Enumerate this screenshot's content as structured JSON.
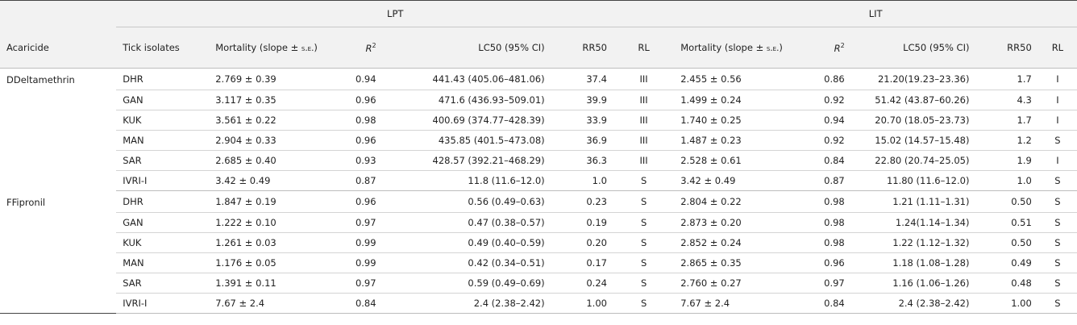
{
  "header": {
    "group_lpt": "LPT",
    "group_lit": "LIT",
    "acaricide": "Acaricide",
    "tick_isolates": "Tick isolates",
    "mortality_prefix": "Mortality (slope ± ",
    "mortality_se": "s.e.",
    "mortality_suffix": ")",
    "r2_base": "R",
    "r2_sup": "2",
    "lc50": "LC50 (95% CI)",
    "rr50": "RR50",
    "rl": "RL"
  },
  "groups": [
    {
      "acaricide": "DDeltamethrin",
      "rows": [
        {
          "isolate": "DHR",
          "lpt_mort": "2.769 ± 0.39",
          "lpt_r2": "0.94",
          "lpt_lc50": "441.43 (405.06–481.06)",
          "lpt_rr50": "37.4",
          "lpt_rl": "III",
          "lit_mort": "2.455 ± 0.56",
          "lit_r2": "0.86",
          "lit_lc50": "21.20(19.23–23.36)",
          "lit_rr50": "1.7",
          "lit_rl": "I"
        },
        {
          "isolate": "GAN",
          "lpt_mort": "3.117 ± 0.35",
          "lpt_r2": "0.96",
          "lpt_lc50": "471.6 (436.93–509.01)",
          "lpt_rr50": "39.9",
          "lpt_rl": "III",
          "lit_mort": "1.499 ± 0.24",
          "lit_r2": "0.92",
          "lit_lc50": "51.42 (43.87–60.26)",
          "lit_rr50": "4.3",
          "lit_rl": "I"
        },
        {
          "isolate": "KUK",
          "lpt_mort": "3.561 ± 0.22",
          "lpt_r2": "0.98",
          "lpt_lc50": "400.69 (374.77–428.39)",
          "lpt_rr50": "33.9",
          "lpt_rl": "III",
          "lit_mort": "1.740 ± 0.25",
          "lit_r2": "0.94",
          "lit_lc50": "20.70 (18.05–23.73)",
          "lit_rr50": "1.7",
          "lit_rl": "I"
        },
        {
          "isolate": "MAN",
          "lpt_mort": "2.904 ± 0.33",
          "lpt_r2": "0.96",
          "lpt_lc50": "435.85 (401.5–473.08)",
          "lpt_rr50": "36.9",
          "lpt_rl": "III",
          "lit_mort": "1.487 ± 0.23",
          "lit_r2": "0.92",
          "lit_lc50": "15.02 (14.57–15.48)",
          "lit_rr50": "1.2",
          "lit_rl": "S"
        },
        {
          "isolate": "SAR",
          "lpt_mort": "2.685 ± 0.40",
          "lpt_r2": "0.93",
          "lpt_lc50": "428.57 (392.21–468.29)",
          "lpt_rr50": "36.3",
          "lpt_rl": "III",
          "lit_mort": "2.528 ± 0.61",
          "lit_r2": "0.84",
          "lit_lc50": "22.80 (20.74–25.05)",
          "lit_rr50": "1.9",
          "lit_rl": "I"
        },
        {
          "isolate": "IVRI-I",
          "lpt_mort": "3.42 ± 0.49",
          "lpt_r2": "0.87",
          "lpt_lc50": "11.8 (11.6–12.0)",
          "lpt_rr50": "1.0",
          "lpt_rl": "S",
          "lit_mort": "3.42 ± 0.49",
          "lit_r2": "0.87",
          "lit_lc50": "11.80 (11.6–12.0)",
          "lit_rr50": "1.0",
          "lit_rl": "S"
        }
      ]
    },
    {
      "acaricide": "FFipronil",
      "rows": [
        {
          "isolate": "DHR",
          "lpt_mort": "1.847 ± 0.19",
          "lpt_r2": "0.96",
          "lpt_lc50": "0.56 (0.49–0.63)",
          "lpt_rr50": "0.23",
          "lpt_rl": "S",
          "lit_mort": "2.804 ± 0.22",
          "lit_r2": "0.98",
          "lit_lc50": "1.21 (1.11–1.31)",
          "lit_rr50": "0.50",
          "lit_rl": "S"
        },
        {
          "isolate": "GAN",
          "lpt_mort": "1.222 ± 0.10",
          "lpt_r2": "0.97",
          "lpt_lc50": "0.47 (0.38–0.57)",
          "lpt_rr50": "0.19",
          "lpt_rl": "S",
          "lit_mort": "2.873 ± 0.20",
          "lit_r2": "0.98",
          "lit_lc50": "1.24(1.14–1.34)",
          "lit_rr50": "0.51",
          "lit_rl": "S"
        },
        {
          "isolate": "KUK",
          "lpt_mort": "1.261 ± 0.03",
          "lpt_r2": "0.99",
          "lpt_lc50": "0.49 (0.40–0.59)",
          "lpt_rr50": "0.20",
          "lpt_rl": "S",
          "lit_mort": "2.852 ± 0.24",
          "lit_r2": "0.98",
          "lit_lc50": "1.22 (1.12–1.32)",
          "lit_rr50": "0.50",
          "lit_rl": "S"
        },
        {
          "isolate": "MAN",
          "lpt_mort": "1.176 ± 0.05",
          "lpt_r2": "0.99",
          "lpt_lc50": "0.42 (0.34–0.51)",
          "lpt_rr50": "0.17",
          "lpt_rl": "S",
          "lit_mort": "2.865 ± 0.35",
          "lit_r2": "0.96",
          "lit_lc50": "1.18 (1.08–1.28)",
          "lit_rr50": "0.49",
          "lit_rl": "S"
        },
        {
          "isolate": "SAR",
          "lpt_mort": "1.391 ± 0.11",
          "lpt_r2": "0.97",
          "lpt_lc50": "0.59 (0.49–0.69)",
          "lpt_rr50": "0.24",
          "lpt_rl": "S",
          "lit_mort": "2.760 ± 0.27",
          "lit_r2": "0.97",
          "lit_lc50": "1.16 (1.06–1.26)",
          "lit_rr50": "0.48",
          "lit_rl": "S"
        },
        {
          "isolate": "IVRI-I",
          "lpt_mort": "7.67 ± 2.4",
          "lpt_r2": "0.84",
          "lpt_lc50": "2.4 (2.38–2.42)",
          "lpt_rr50": "1.00",
          "lpt_rl": "S",
          "lit_mort": "7.67 ± 2.4",
          "lit_r2": "0.84",
          "lit_lc50": "2.4 (2.38–2.42)",
          "lit_rr50": "1.00",
          "lit_rl": "S"
        }
      ]
    }
  ]
}
